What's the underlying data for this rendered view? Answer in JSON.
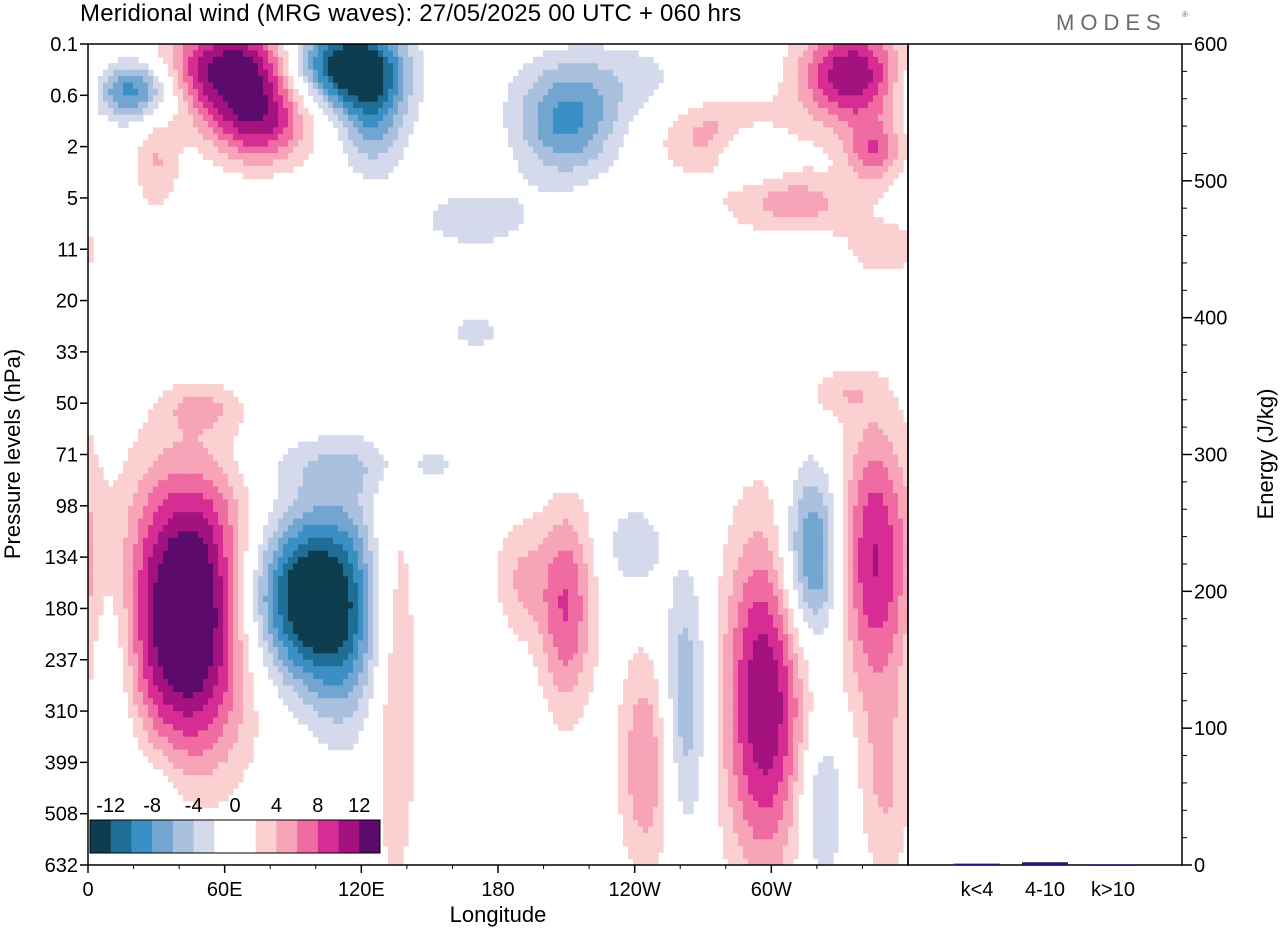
{
  "title": "Meridional wind (MRG waves):  27/05/2025  00 UTC  + 060 hrs",
  "brand": "MODES",
  "brand_mark": "®",
  "chart_data": [
    {
      "type": "heatmap",
      "title": "Meridional wind (MRG waves):  27/05/2025  00 UTC  + 060 hrs",
      "xlabel": "Longitude",
      "ylabel": "Pressure levels (hPa)",
      "x_ticks": [
        "0",
        "60E",
        "120E",
        "180",
        "120W",
        "60W"
      ],
      "y_ticks": [
        "0.1",
        "0.6",
        "2",
        "5",
        "11",
        "20",
        "33",
        "50",
        "71",
        "98",
        "134",
        "180",
        "237",
        "310",
        "399",
        "508",
        "632"
      ],
      "colorbar": {
        "labels": [
          "-12",
          "-8",
          "-4",
          "0",
          "4",
          "8",
          "12"
        ],
        "colors": [
          "#0d3d4f",
          "#1f6e96",
          "#3a8fc4",
          "#72a6d1",
          "#a9c0df",
          "#d5d9ec",
          "#ffffff",
          "#ffffff",
          "#fbd0d0",
          "#f7a3b8",
          "#ef6ba2",
          "#d62c93",
          "#a3127f",
          "#5c0a6c"
        ]
      },
      "features": [
        {
          "lon": 45,
          "lev": 10.5,
          "val": 13,
          "rx": 30,
          "ry": 2.6
        },
        {
          "lon": 42,
          "lev": 12.4,
          "val": 6,
          "rx": 28,
          "ry": 2.2
        },
        {
          "lon": 80,
          "lev": 10.8,
          "val": -9,
          "rx": 20,
          "ry": 1.7
        },
        {
          "lon": 96,
          "lev": 10.8,
          "val": -8,
          "rx": 14,
          "ry": 1.6
        },
        {
          "lon": 112,
          "lev": 11.0,
          "val": -11,
          "rx": 16,
          "ry": 2.1
        },
        {
          "lon": 135,
          "lev": 12.5,
          "val": 4,
          "rx": 10,
          "ry": 4.5
        },
        {
          "lon": 210,
          "lev": 11.0,
          "val": 8,
          "rx": 12,
          "ry": 2.0
        },
        {
          "lon": 190,
          "lev": 10.4,
          "val": 4,
          "rx": 12,
          "ry": 1.2
        },
        {
          "lon": 245,
          "lev": 14.0,
          "val": 6,
          "rx": 12,
          "ry": 2.2
        },
        {
          "lon": 262,
          "lev": 12.8,
          "val": -6,
          "rx": 10,
          "ry": 2.5
        },
        {
          "lon": 297,
          "lev": 12.8,
          "val": 12,
          "rx": 18,
          "ry": 3.3
        },
        {
          "lon": 318,
          "lev": 10.0,
          "val": -10,
          "rx": 13,
          "ry": 1.7
        },
        {
          "lon": 345,
          "lev": 10.0,
          "val": 10,
          "rx": 16,
          "ry": 2.6
        },
        {
          "lon": 322,
          "lev": 14.8,
          "val": -5,
          "rx": 10,
          "ry": 1.6
        },
        {
          "lon": 350,
          "lev": 14.5,
          "val": 4,
          "rx": 12,
          "ry": 2.0
        },
        {
          "lon": 120,
          "lev": 8.2,
          "val": -3,
          "rx": 60,
          "ry": 0.6
        },
        {
          "lon": 240,
          "lev": 9.8,
          "val": -4,
          "rx": 12,
          "ry": 0.8
        },
        {
          "lon": 12,
          "lev": 12.0,
          "val": -4,
          "rx": 12,
          "ry": 2.5
        },
        {
          "lon": 28,
          "lev": 15.0,
          "val": -3,
          "rx": 14,
          "ry": 1.5
        },
        {
          "lon": 230,
          "lev": 0.7,
          "val": -3,
          "rx": 40,
          "ry": 0.8
        },
        {
          "lon": 65,
          "lev": 0.5,
          "val": 14,
          "rx": 30,
          "ry": 0.9
        },
        {
          "lon": 110,
          "lev": 0.4,
          "val": -14,
          "rx": 25,
          "ry": 0.8
        },
        {
          "lon": 20,
          "lev": 0.9,
          "val": -10,
          "rx": 18,
          "ry": 0.6
        },
        {
          "lon": 335,
          "lev": 0.6,
          "val": 12,
          "rx": 22,
          "ry": 1.0
        },
        {
          "lon": 75,
          "lev": 1.6,
          "val": 9,
          "rx": 22,
          "ry": 0.8
        },
        {
          "lon": 125,
          "lev": 1.2,
          "val": -8,
          "rx": 15,
          "ry": 1.2
        },
        {
          "lon": 210,
          "lev": 1.6,
          "val": -8,
          "rx": 22,
          "ry": 1.0
        },
        {
          "lon": 280,
          "lev": 1.8,
          "val": 6,
          "rx": 28,
          "ry": 0.8
        },
        {
          "lon": 345,
          "lev": 2.1,
          "val": 7,
          "rx": 12,
          "ry": 0.6
        },
        {
          "lon": 310,
          "lev": 3.1,
          "val": 5,
          "rx": 30,
          "ry": 0.6
        },
        {
          "lon": 290,
          "lev": 2.1,
          "val": -6,
          "rx": 15,
          "ry": 0.6
        },
        {
          "lon": 30,
          "lev": 2.3,
          "val": 4,
          "rx": 10,
          "ry": 1.0
        },
        {
          "lon": 170,
          "lev": 3.4,
          "val": -3,
          "rx": 30,
          "ry": 0.7
        },
        {
          "lon": 350,
          "lev": 4.0,
          "val": 3,
          "rx": 20,
          "ry": 0.6
        },
        {
          "lon": 330,
          "lev": 6.8,
          "val": 3,
          "rx": 15,
          "ry": 0.5
        },
        {
          "lon": 50,
          "lev": 7.1,
          "val": 3,
          "rx": 15,
          "ry": 0.4
        },
        {
          "lon": 170,
          "lev": 5.6,
          "val": -3,
          "rx": 12,
          "ry": 0.4
        }
      ],
      "energy_panel": {
        "ylabel": "Energy (J/kg)",
        "y_ticks": [
          "0",
          "100",
          "200",
          "300",
          "400",
          "500",
          "600"
        ],
        "ylim": [
          0,
          600
        ],
        "categories": [
          "k<4",
          "4-10",
          "k>10"
        ],
        "values": [
          1,
          2,
          0.5
        ]
      }
    }
  ]
}
